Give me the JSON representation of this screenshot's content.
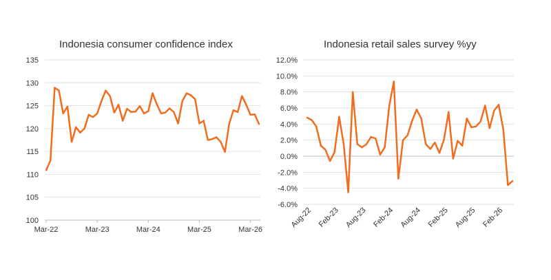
{
  "chart_data": [
    {
      "type": "line",
      "title": "Indonesia consumer confidence index",
      "xlabel": "",
      "ylabel": "",
      "x_ticks": [
        "Mar-22",
        "Mar-23",
        "Mar-24",
        "Mar-25",
        "Mar-26"
      ],
      "y_ticks": [
        "100",
        "105",
        "110",
        "115",
        "120",
        "125",
        "130",
        "135"
      ],
      "ylim": [
        100,
        135
      ],
      "grid": "horizontal",
      "color": "#f26c1d",
      "series": [
        {
          "values": [
            110.9,
            113.0,
            128.9,
            128.3,
            123.3,
            124.8,
            117.1,
            120.3,
            119.1,
            120.0,
            123.0,
            122.5,
            123.3,
            126.0,
            128.3,
            127.1,
            123.5,
            125.2,
            121.7,
            124.3,
            123.6,
            123.7,
            124.9,
            123.3,
            123.8,
            127.7,
            125.3,
            123.3,
            123.5,
            124.4,
            123.6,
            121.1,
            126.0,
            127.7,
            127.3,
            126.4,
            121.1,
            121.7,
            117.5,
            117.7,
            118.1,
            117.1,
            114.9,
            121.0,
            124.0,
            123.6,
            127.1,
            125.2,
            123.0,
            123.1,
            121.0
          ]
        }
      ]
    },
    {
      "type": "line",
      "title": "Indonesia retail sales survey %yy",
      "xlabel": "",
      "ylabel": "",
      "x_ticks": [
        "Aug-22",
        "Feb-23",
        "Aug-23",
        "Feb-24",
        "Aug-24",
        "Feb-25",
        "Aug-25",
        "Feb-26"
      ],
      "y_ticks": [
        "-6.0%",
        "-4.0%",
        "-2.0%",
        "0.0%",
        "2.0%",
        "4.0%",
        "6.0%",
        "8.0%",
        "10.0%",
        "12.0%"
      ],
      "ylim": [
        -6,
        12
      ],
      "grid": "horizontal",
      "color": "#f26c1d",
      "series": [
        {
          "values": [
            4.8,
            4.5,
            3.7,
            1.3,
            0.8,
            -0.6,
            0.5,
            4.9,
            1.5,
            -4.5,
            8.0,
            1.5,
            1.1,
            1.5,
            2.4,
            2.2,
            0.2,
            1.1,
            6.3,
            9.3,
            -2.8,
            2.0,
            2.6,
            4.4,
            5.8,
            4.7,
            1.5,
            0.9,
            1.7,
            0.4,
            2.1,
            5.5,
            -0.3,
            1.9,
            1.3,
            4.7,
            3.6,
            3.7,
            4.3,
            6.3,
            3.5,
            5.7,
            6.4,
            3.3,
            -3.6,
            -3.1
          ]
        }
      ]
    }
  ]
}
